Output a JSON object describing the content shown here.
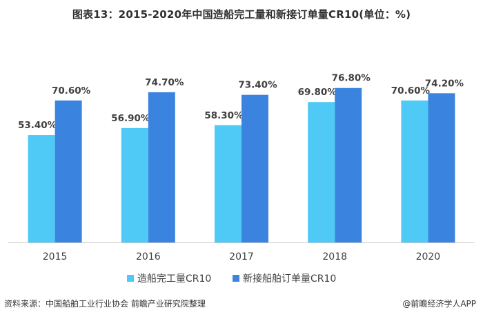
{
  "title": "图表13：2015-2020年中国造船完工量和新接订单量CR10(单位：%)",
  "source": "资料来源：中国船舶工业行业协会 前瞻产业研究院整理",
  "credit": "@前瞻经济学人APP",
  "colors": {
    "series1": "#4fc9f5",
    "series2": "#3a84e0",
    "axis": "#c8c8c8",
    "label": "#404040"
  },
  "chart_data": {
    "type": "bar",
    "categories": [
      "2015",
      "2016",
      "2017",
      "2018",
      "2020"
    ],
    "series": [
      {
        "name": "造船完工量CR10",
        "values": [
          53.4,
          56.9,
          58.3,
          69.8,
          70.6
        ],
        "labels": [
          "53.40%",
          "56.90%",
          "58.30%",
          "69.80%",
          "70.60%"
        ]
      },
      {
        "name": "新接船舶订单量CR10",
        "values": [
          70.6,
          74.7,
          73.4,
          76.8,
          74.2
        ],
        "labels": [
          "70.60%",
          "74.70%",
          "73.40%",
          "76.80%",
          "74.20%"
        ]
      }
    ],
    "ylim": [
      0,
      100
    ],
    "grid": false,
    "legend": "bottom-center"
  }
}
